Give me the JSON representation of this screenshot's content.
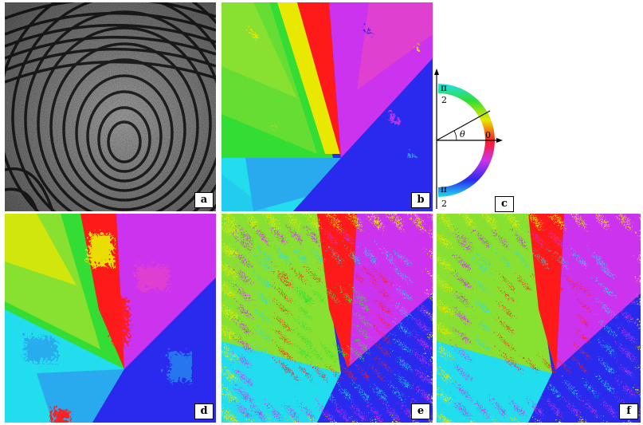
{
  "panels": {
    "a": {
      "label": "a"
    },
    "b": {
      "label": "b"
    },
    "c": {
      "label": "c",
      "top_symbol": "π",
      "top_denominator": "2",
      "bottom_symbol": "π",
      "bottom_denominator": "2",
      "zero": "0",
      "theta": "θ"
    },
    "d": {
      "label": "d"
    },
    "e": {
      "label": "e"
    },
    "f": {
      "label": "f"
    }
  },
  "colors": {
    "red": "#ff1a1a",
    "yellow": "#e8e800",
    "green": "#33dd33",
    "cyan": "#22ddee",
    "blue": "#2a2aee",
    "magenta": "#cc33ee"
  }
}
